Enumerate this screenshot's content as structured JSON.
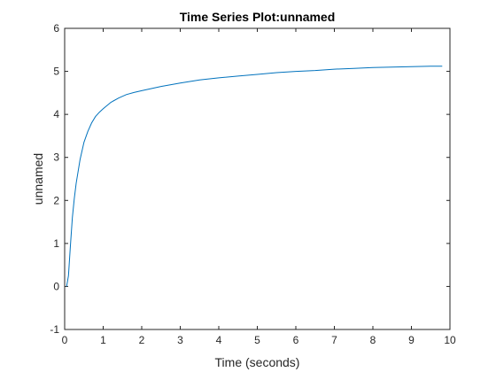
{
  "chart_data": {
    "type": "line",
    "title": "Time Series Plot:unnamed",
    "xlabel": "Time (seconds)",
    "ylabel": "unnamed",
    "xlim": [
      0,
      10
    ],
    "ylim": [
      -1,
      6
    ],
    "x_ticks": [
      0,
      1,
      2,
      3,
      4,
      5,
      6,
      7,
      8,
      9,
      10
    ],
    "y_ticks": [
      -1,
      0,
      1,
      2,
      3,
      4,
      5,
      6
    ],
    "grid": false,
    "line_color": "#0072bd",
    "series": [
      {
        "x": [
          0.05,
          0.1,
          0.15,
          0.2,
          0.25,
          0.3,
          0.4,
          0.5,
          0.6,
          0.7,
          0.8,
          0.9,
          1.0,
          1.2,
          1.4,
          1.6,
          1.8,
          2.0,
          2.5,
          3.0,
          3.5,
          4.0,
          4.5,
          5.0,
          5.5,
          6.0,
          6.5,
          7.0,
          7.5,
          8.0,
          8.5,
          9.0,
          9.5,
          9.8
        ],
        "y": [
          0.0,
          0.25,
          0.95,
          1.6,
          2.05,
          2.4,
          2.95,
          3.35,
          3.6,
          3.8,
          3.95,
          4.05,
          4.13,
          4.28,
          4.38,
          4.46,
          4.51,
          4.55,
          4.65,
          4.73,
          4.8,
          4.85,
          4.89,
          4.93,
          4.97,
          5.0,
          5.02,
          5.05,
          5.07,
          5.09,
          5.1,
          5.11,
          5.12,
          5.12
        ]
      }
    ]
  }
}
